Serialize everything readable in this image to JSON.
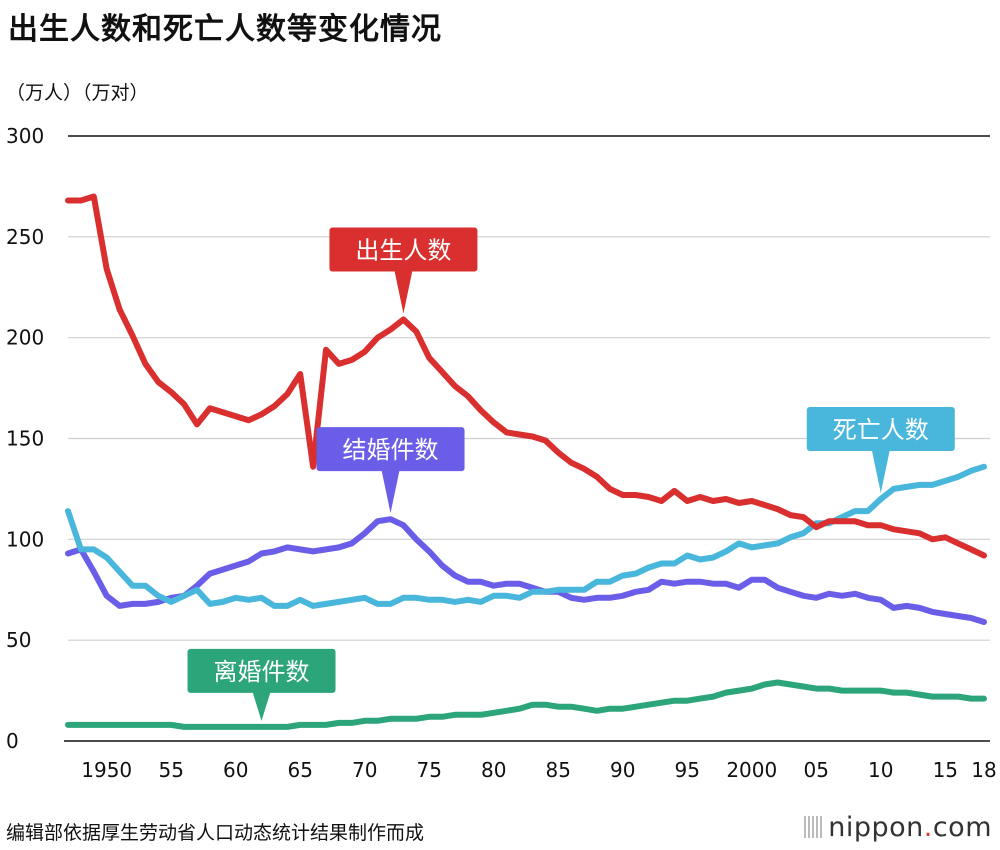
{
  "header": {
    "title": "出生人数和死亡人数等变化情况",
    "units": "（万人）（万对）"
  },
  "footer": {
    "source": "编辑部依据厚生劳动省人口动态统计结果制作而成",
    "logo_text": "nippon",
    "logo_dot": ".",
    "logo_suffix": "com"
  },
  "chart_data": {
    "type": "line",
    "title": "出生人数和死亡人数等变化情况",
    "ylabel": "（万人）（万对）",
    "xlabel": "",
    "ylim": [
      0,
      300
    ],
    "xlim": [
      1947,
      2018
    ],
    "grid": true,
    "yticks": [
      0,
      50,
      100,
      150,
      200,
      250,
      300
    ],
    "xticks": [
      {
        "year": 1950,
        "label": "1950"
      },
      {
        "year": 1955,
        "label": "55"
      },
      {
        "year": 1960,
        "label": "60"
      },
      {
        "year": 1965,
        "label": "65"
      },
      {
        "year": 1970,
        "label": "70"
      },
      {
        "year": 1975,
        "label": "75"
      },
      {
        "year": 1980,
        "label": "80"
      },
      {
        "year": 1985,
        "label": "85"
      },
      {
        "year": 1990,
        "label": "90"
      },
      {
        "year": 1995,
        "label": "95"
      },
      {
        "year": 2000,
        "label": "2000"
      },
      {
        "year": 2005,
        "label": "05"
      },
      {
        "year": 2010,
        "label": "10"
      },
      {
        "year": 2015,
        "label": "15"
      },
      {
        "year": 2018,
        "label": "18"
      }
    ],
    "x": [
      1947,
      1948,
      1949,
      1950,
      1951,
      1952,
      1953,
      1954,
      1955,
      1956,
      1957,
      1958,
      1959,
      1960,
      1961,
      1962,
      1963,
      1964,
      1965,
      1966,
      1967,
      1968,
      1969,
      1970,
      1971,
      1972,
      1973,
      1974,
      1975,
      1976,
      1977,
      1978,
      1979,
      1980,
      1981,
      1982,
      1983,
      1984,
      1985,
      1986,
      1987,
      1988,
      1989,
      1990,
      1991,
      1992,
      1993,
      1994,
      1995,
      1996,
      1997,
      1998,
      1999,
      2000,
      2001,
      2002,
      2003,
      2004,
      2005,
      2006,
      2007,
      2008,
      2009,
      2010,
      2011,
      2012,
      2013,
      2014,
      2015,
      2016,
      2017,
      2018
    ],
    "series": [
      {
        "name": "出生人数",
        "color": "#d92f2f",
        "label_year": 1973,
        "values": [
          268,
          268,
          270,
          234,
          214,
          201,
          187,
          178,
          173,
          167,
          157,
          165,
          163,
          161,
          159,
          162,
          166,
          172,
          182,
          136,
          194,
          187,
          189,
          193,
          200,
          204,
          209,
          203,
          190,
          183,
          176,
          171,
          164,
          158,
          153,
          152,
          151,
          149,
          143,
          138,
          135,
          131,
          125,
          122,
          122,
          121,
          119,
          124,
          119,
          121,
          119,
          120,
          118,
          119,
          117,
          115,
          112,
          111,
          106,
          109,
          109,
          109,
          107,
          107,
          105,
          104,
          103,
          100,
          101,
          98,
          95,
          92
        ]
      },
      {
        "name": "死亡人数",
        "color": "#49b6dc",
        "label_year": 2010,
        "values": [
          114,
          95,
          95,
          91,
          84,
          77,
          77,
          72,
          69,
          72,
          75,
          68,
          69,
          71,
          70,
          71,
          67,
          67,
          70,
          67,
          68,
          69,
          70,
          71,
          68,
          68,
          71,
          71,
          70,
          70,
          69,
          70,
          69,
          72,
          72,
          71,
          74,
          74,
          75,
          75,
          75,
          79,
          79,
          82,
          83,
          86,
          88,
          88,
          92,
          90,
          91,
          94,
          98,
          96,
          97,
          98,
          101,
          103,
          108,
          108,
          111,
          114,
          114,
          120,
          125,
          126,
          127,
          127,
          129,
          131,
          134,
          136
        ]
      },
      {
        "name": "结婚件数",
        "color": "#6a5ee8",
        "label_year": 1972,
        "values": [
          93,
          95,
          84,
          72,
          67,
          68,
          68,
          69,
          71,
          72,
          77,
          83,
          85,
          87,
          89,
          93,
          94,
          96,
          95,
          94,
          95,
          96,
          98,
          103,
          109,
          110,
          107,
          100,
          94,
          87,
          82,
          79,
          79,
          77,
          78,
          78,
          76,
          74,
          74,
          71,
          70,
          71,
          71,
          72,
          74,
          75,
          79,
          78,
          79,
          79,
          78,
          78,
          76,
          80,
          80,
          76,
          74,
          72,
          71,
          73,
          72,
          73,
          71,
          70,
          66,
          67,
          66,
          64,
          63,
          62,
          61,
          59
        ]
      },
      {
        "name": "离婚件数",
        "color": "#2ca57a",
        "label_year": 1962,
        "values": [
          8,
          8,
          8,
          8,
          8,
          8,
          8,
          8,
          8,
          7,
          7,
          7,
          7,
          7,
          7,
          7,
          7,
          7,
          8,
          8,
          8,
          9,
          9,
          10,
          10,
          11,
          11,
          11,
          12,
          12,
          13,
          13,
          13,
          14,
          15,
          16,
          18,
          18,
          17,
          17,
          16,
          15,
          16,
          16,
          17,
          18,
          19,
          20,
          20,
          21,
          22,
          24,
          25,
          26,
          28,
          29,
          28,
          27,
          26,
          26,
          25,
          25,
          25,
          25,
          24,
          24,
          23,
          22,
          22,
          22,
          21,
          21
        ]
      }
    ]
  }
}
